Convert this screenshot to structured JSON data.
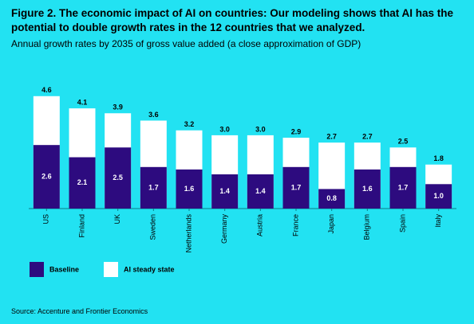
{
  "chart_data": {
    "type": "overlap-bar",
    "title": "Figure 2. The economic impact of AI on countries: Our modeling shows that AI has the potential to double growth rates in the 12 countries that we analyzed.",
    "subtitle": "Annual growth rates by 2035 of gross value added (a close approximation of GDP)",
    "source": "Source: Accenture and Frontier Economics",
    "categories": [
      "US",
      "Finland",
      "UK",
      "Sweden",
      "Netherlands",
      "Germany",
      "Austria",
      "France",
      "Japan",
      "Belgium",
      "Spain",
      "Italy"
    ],
    "ylim": [
      0,
      5
    ],
    "series": [
      {
        "name": "AI steady state",
        "color": "#ffffff",
        "label_color": "#000000",
        "values": [
          4.6,
          4.1,
          3.9,
          3.6,
          3.2,
          3.0,
          3.0,
          2.9,
          2.7,
          2.7,
          2.5,
          1.8
        ],
        "value_labels": [
          "4.6",
          "4.1",
          "3.9",
          "3.6",
          "3.2",
          "3.0",
          "3.0",
          "2.9",
          "2.7",
          "2.7",
          "2.5",
          "1.8"
        ]
      },
      {
        "name": "Baseline",
        "color": "#2d0b7f",
        "label_color": "#ffffff",
        "values": [
          2.6,
          2.1,
          2.5,
          1.7,
          1.6,
          1.4,
          1.4,
          1.7,
          0.8,
          1.6,
          1.7,
          1.0
        ],
        "value_labels": [
          "2.6",
          "2.1",
          "2.5",
          "1.7",
          "1.6",
          "1.4",
          "1.4",
          "1.7",
          "0.8",
          "1.6",
          "1.7",
          "1.0"
        ]
      }
    ]
  }
}
